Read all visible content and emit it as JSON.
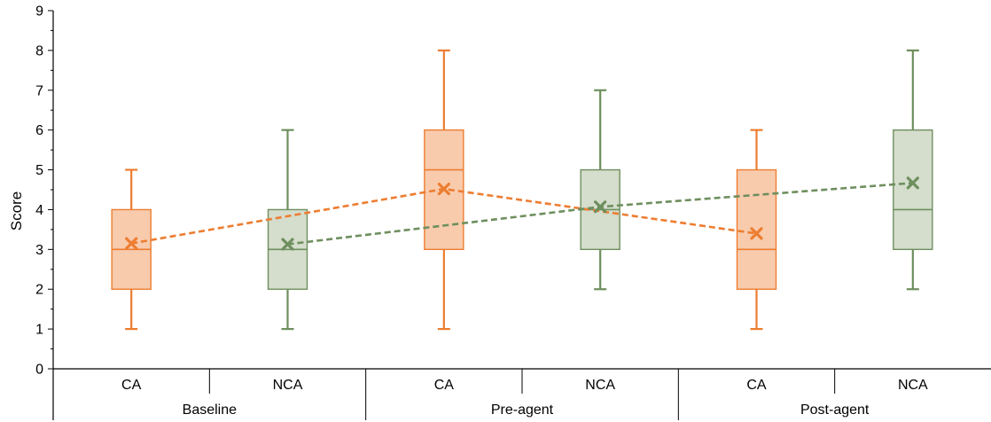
{
  "chart_data": {
    "type": "box",
    "ylabel": "Score",
    "xlabel": "",
    "ylim": [
      0,
      9
    ],
    "yticks": [
      "0",
      "1",
      "2",
      "3",
      "4",
      "5",
      "6",
      "7",
      "8",
      "9"
    ],
    "grid": false,
    "groups": [
      "Baseline",
      "Pre-agent",
      "Post-agent"
    ],
    "subcategories": [
      "CA",
      "NCA"
    ],
    "series": [
      {
        "key": "CA",
        "color": "#ED7D31",
        "fill": "#F8CBAD",
        "boxes": [
          {
            "group": "Baseline",
            "min": 1,
            "q1": 2,
            "median": 3,
            "q3": 4,
            "max": 5,
            "mean": 3.15
          },
          {
            "group": "Pre-agent",
            "min": 1,
            "q1": 3,
            "median": 5,
            "q3": 6,
            "max": 8,
            "mean": 4.52
          },
          {
            "group": "Post-agent",
            "min": 1,
            "q1": 2,
            "median": 3,
            "q3": 5,
            "max": 6,
            "mean": 3.4
          }
        ]
      },
      {
        "key": "NCA",
        "color": "#6E8F5E",
        "fill": "#D5DDCC",
        "boxes": [
          {
            "group": "Baseline",
            "min": 1,
            "q1": 2,
            "median": 3,
            "q3": 4,
            "max": 6,
            "mean": 3.13
          },
          {
            "group": "Pre-agent",
            "min": 2,
            "q1": 3,
            "median": 4,
            "q3": 5,
            "max": 7,
            "mean": 4.07
          },
          {
            "group": "Post-agent",
            "min": 2,
            "q1": 3,
            "median": 4,
            "q3": 6,
            "max": 8,
            "mean": 4.67
          }
        ]
      }
    ],
    "mean_marker": "x",
    "mean_line": "dashed"
  }
}
